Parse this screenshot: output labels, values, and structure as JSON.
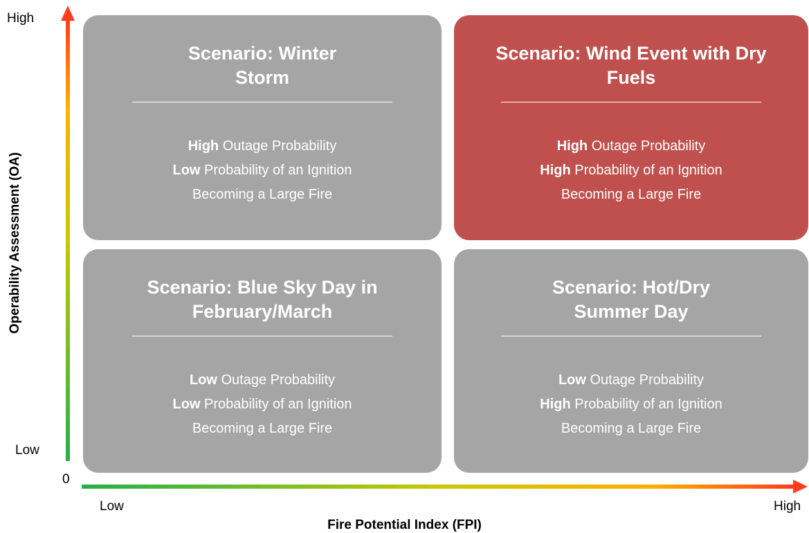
{
  "y_axis": {
    "label": "Operability Assessment (OA)",
    "high": "High",
    "low": "Low"
  },
  "x_axis": {
    "label": "Fire Potential Index (FPI)",
    "low": "Low",
    "high": "High"
  },
  "origin": "0",
  "quadrants": [
    {
      "title": [
        "Scenario: Winter",
        "Storm"
      ],
      "color": "#a5a5a5",
      "lines": [
        {
          "bold": "High",
          "text": "Outage Probability"
        },
        {
          "bold": "Low",
          "text": "Probability of an Ignition"
        },
        {
          "text": "Becoming a Large Fire"
        }
      ]
    },
    {
      "title": [
        "Scenario: Wind Event with Dry",
        "Fuels"
      ],
      "color": "#c0504d",
      "lines": [
        {
          "bold": "High",
          "text": "Outage Probability"
        },
        {
          "bold": "High",
          "text": "Probability of an Ignition"
        },
        {
          "text": "Becoming a Large Fire"
        }
      ]
    },
    {
      "title": [
        "Scenario: Blue Sky Day in",
        "February/March"
      ],
      "color": "#a5a5a5",
      "lines": [
        {
          "bold": "Low",
          "text": "Outage Probability"
        },
        {
          "bold": "Low",
          "text": "Probability of an Ignition"
        },
        {
          "text": "Becoming a Large Fire"
        }
      ]
    },
    {
      "title": [
        "Scenario: Hot/Dry",
        "Summer Day"
      ],
      "color": "#a5a5a5",
      "lines": [
        {
          "bold": "Low",
          "text": "Outage Probability"
        },
        {
          "bold": "High",
          "text": "Probability of an Ignition"
        },
        {
          "text": "Becoming a Large Fire"
        }
      ]
    }
  ]
}
